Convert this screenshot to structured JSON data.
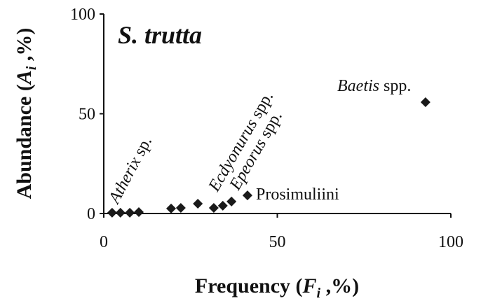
{
  "chart_data": {
    "type": "scatter",
    "title": "S. trutta",
    "x_label": [
      "Frequency (",
      "F",
      "i",
      " ,%)"
    ],
    "y_label": [
      "Abundance (",
      "A",
      "i",
      " ,%)"
    ],
    "x": [
      2.4,
      4.8,
      7.5,
      10.1,
      19.4,
      22.2,
      27.1,
      31.7,
      34.3,
      36.8,
      41.4,
      92.7
    ],
    "values": [
      0.4,
      0.4,
      0.4,
      0.7,
      2.5,
      2.8,
      4.9,
      2.8,
      3.9,
      6,
      9.1,
      55.8
    ],
    "color": "#1a1a1a",
    "xlim": [
      0,
      100
    ],
    "xticks": [
      0,
      50,
      100
    ],
    "ylim": [
      0,
      100
    ],
    "yticks": [
      0,
      50,
      100
    ],
    "annotations": [
      {
        "italic": "Atherix",
        "text": "sp."
      },
      {
        "italic": "Ecdyonurus",
        "text": "spp."
      },
      {
        "italic": "Epeorus",
        "text": "spp."
      },
      {
        "italic": "",
        "text": "Prosimuliini"
      },
      {
        "italic": "Baetis",
        "text": "spp."
      }
    ]
  }
}
